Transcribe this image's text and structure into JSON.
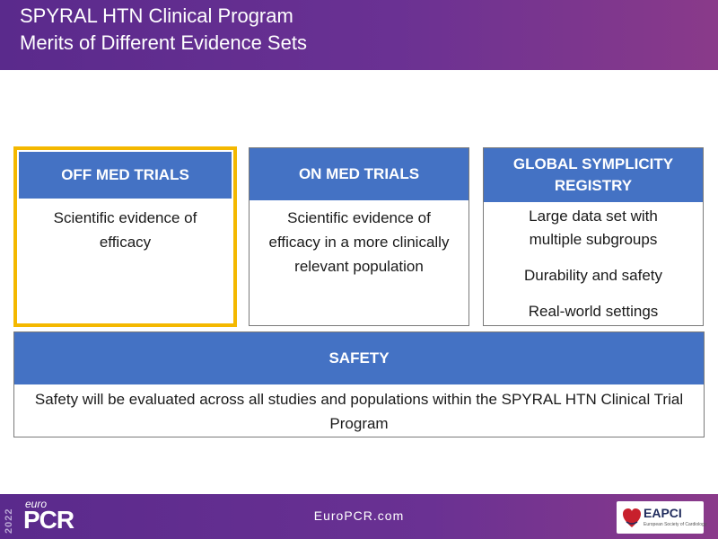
{
  "header": {
    "title_line1": "SPYRAL HTN Clinical Program",
    "title_line2": "Merits of Different Evidence Sets"
  },
  "boxes": {
    "off_med": {
      "title": "OFF MED TRIALS",
      "body": "Scientific evidence of efficacy"
    },
    "on_med": {
      "title": "ON MED TRIALS",
      "body": "Scientific evidence of efficacy in a more clinically relevant population"
    },
    "registry": {
      "title": "GLOBAL SYMPLICITY REGISTRY",
      "items": [
        "Large data set with multiple subgroups",
        "Durability and safety",
        "Real-world settings"
      ]
    },
    "safety": {
      "title": "SAFETY",
      "body": "Safety will be evaluated across all studies and populations within the SPYRAL HTN Clinical Trial Program"
    }
  },
  "footer": {
    "year": "2022",
    "logo_small": "euro",
    "logo_big": "PCR",
    "website": "EuroPCR.com",
    "partner_logo": "EAPCI",
    "partner_sub": "European Society of Cardiology"
  },
  "colors": {
    "header_purple": "#6a3193",
    "box_blue": "#4472c4",
    "highlight_gold": "#f4b800"
  }
}
